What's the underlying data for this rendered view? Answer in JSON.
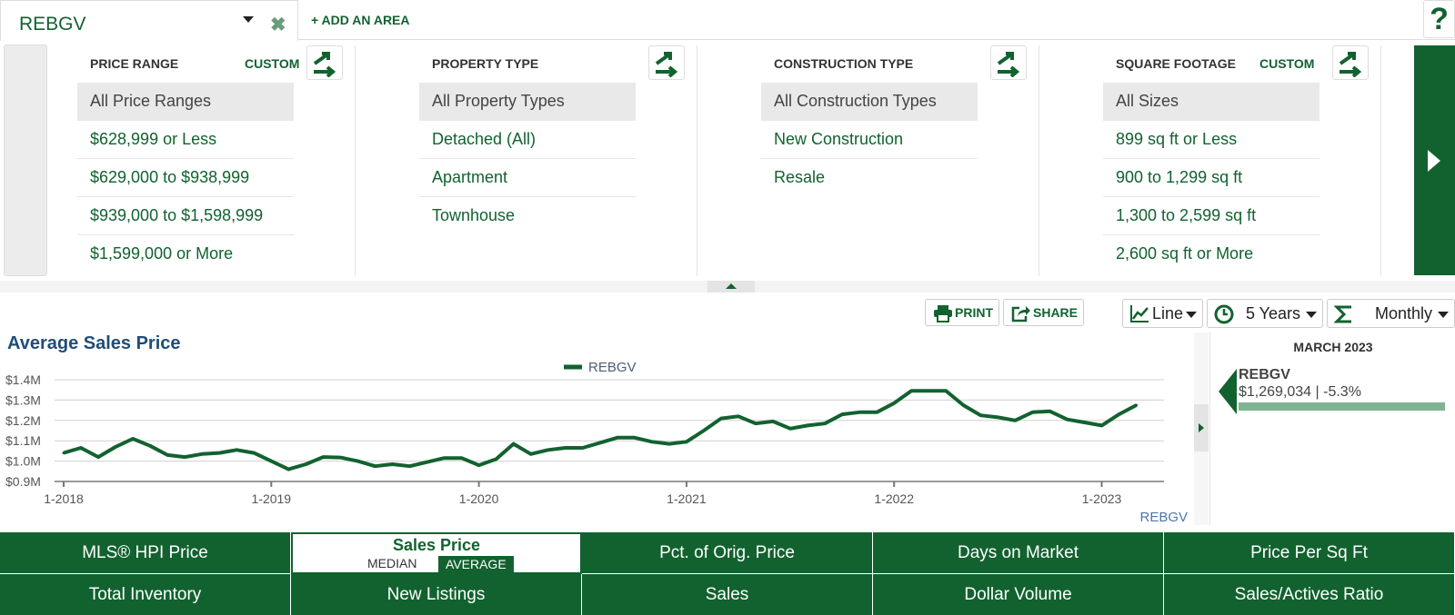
{
  "tabs": {
    "area_name": "REBGV",
    "add_area_label": "+ ADD AN AREA",
    "help_label": "?"
  },
  "filters": [
    {
      "title": "PRICE RANGE",
      "custom_label": "CUSTOM",
      "options": [
        "All Price Ranges",
        "$628,999 or Less",
        "$629,000 to $938,999",
        "$939,000 to $1,598,999",
        "$1,599,000 or More"
      ],
      "selected": 0
    },
    {
      "title": "PROPERTY TYPE",
      "custom_label": "",
      "options": [
        "All Property Types",
        "Detached (All)",
        "Apartment",
        "Townhouse"
      ],
      "selected": 0
    },
    {
      "title": "CONSTRUCTION TYPE",
      "custom_label": "",
      "options": [
        "All Construction Types",
        "New Construction",
        "Resale"
      ],
      "selected": 0
    },
    {
      "title": "SQUARE FOOTAGE",
      "custom_label": "CUSTOM",
      "options": [
        "All Sizes",
        "899 sq ft or Less",
        "900 to 1,299 sq ft",
        "1,300 to 2,599 sq ft",
        "2,600 sq ft or More"
      ],
      "selected": 0
    }
  ],
  "toolbar": {
    "print_label": "PRINT",
    "share_label": "SHARE",
    "chart_type": "Line",
    "time_range": "5 Years",
    "interval": "Monthly"
  },
  "side_panel": {
    "month": "MARCH 2023",
    "area": "REBGV",
    "value": "$1,269,034 | -5.3%"
  },
  "metrics": {
    "row1": [
      "MLS® HPI Price",
      "Sales Price",
      "Pct. of Orig. Price",
      "Days on Market",
      "Price Per Sq Ft"
    ],
    "row2": [
      "Total Inventory",
      "New Listings",
      "Sales",
      "Dollar Volume",
      "Sales/Actives Ratio"
    ],
    "sales_price_median": "MEDIAN",
    "sales_price_average": "AVERAGE"
  },
  "colors": {
    "brand_green": "#12622f",
    "light_green": "#80b391",
    "title_blue": "#1f4d78",
    "source_blue": "#4a78a8"
  },
  "chart_data": {
    "type": "line",
    "title": "Average Sales Price",
    "source_label": "REBGV",
    "x_ticks": [
      "1-2018",
      "1-2019",
      "1-2020",
      "1-2021",
      "1-2022",
      "1-2023"
    ],
    "y_ticks": [
      "$0.9M",
      "$1.0M",
      "$1.1M",
      "$1.2M",
      "$1.3M",
      "$1.4M"
    ],
    "ylim": [
      0.9,
      1.4
    ],
    "grid": true,
    "legend_position": "top-center",
    "series": [
      {
        "name": "REBGV",
        "color": "#12622f",
        "start_month": "1-2018",
        "values": [
          1.04,
          1.065,
          1.02,
          1.07,
          1.11,
          1.075,
          1.03,
          1.02,
          1.035,
          1.04,
          1.055,
          1.04,
          1.0,
          0.96,
          0.985,
          1.02,
          1.018,
          1.0,
          0.975,
          0.985,
          0.975,
          0.995,
          1.015,
          1.015,
          0.98,
          1.01,
          1.085,
          1.035,
          1.055,
          1.065,
          1.065,
          1.09,
          1.115,
          1.115,
          1.095,
          1.085,
          1.095,
          1.15,
          1.21,
          1.22,
          1.185,
          1.195,
          1.16,
          1.175,
          1.185,
          1.23,
          1.24,
          1.24,
          1.285,
          1.345,
          1.345,
          1.345,
          1.275,
          1.225,
          1.215,
          1.2,
          1.24,
          1.245,
          1.205,
          1.19,
          1.175,
          1.23,
          1.275
        ]
      }
    ]
  }
}
